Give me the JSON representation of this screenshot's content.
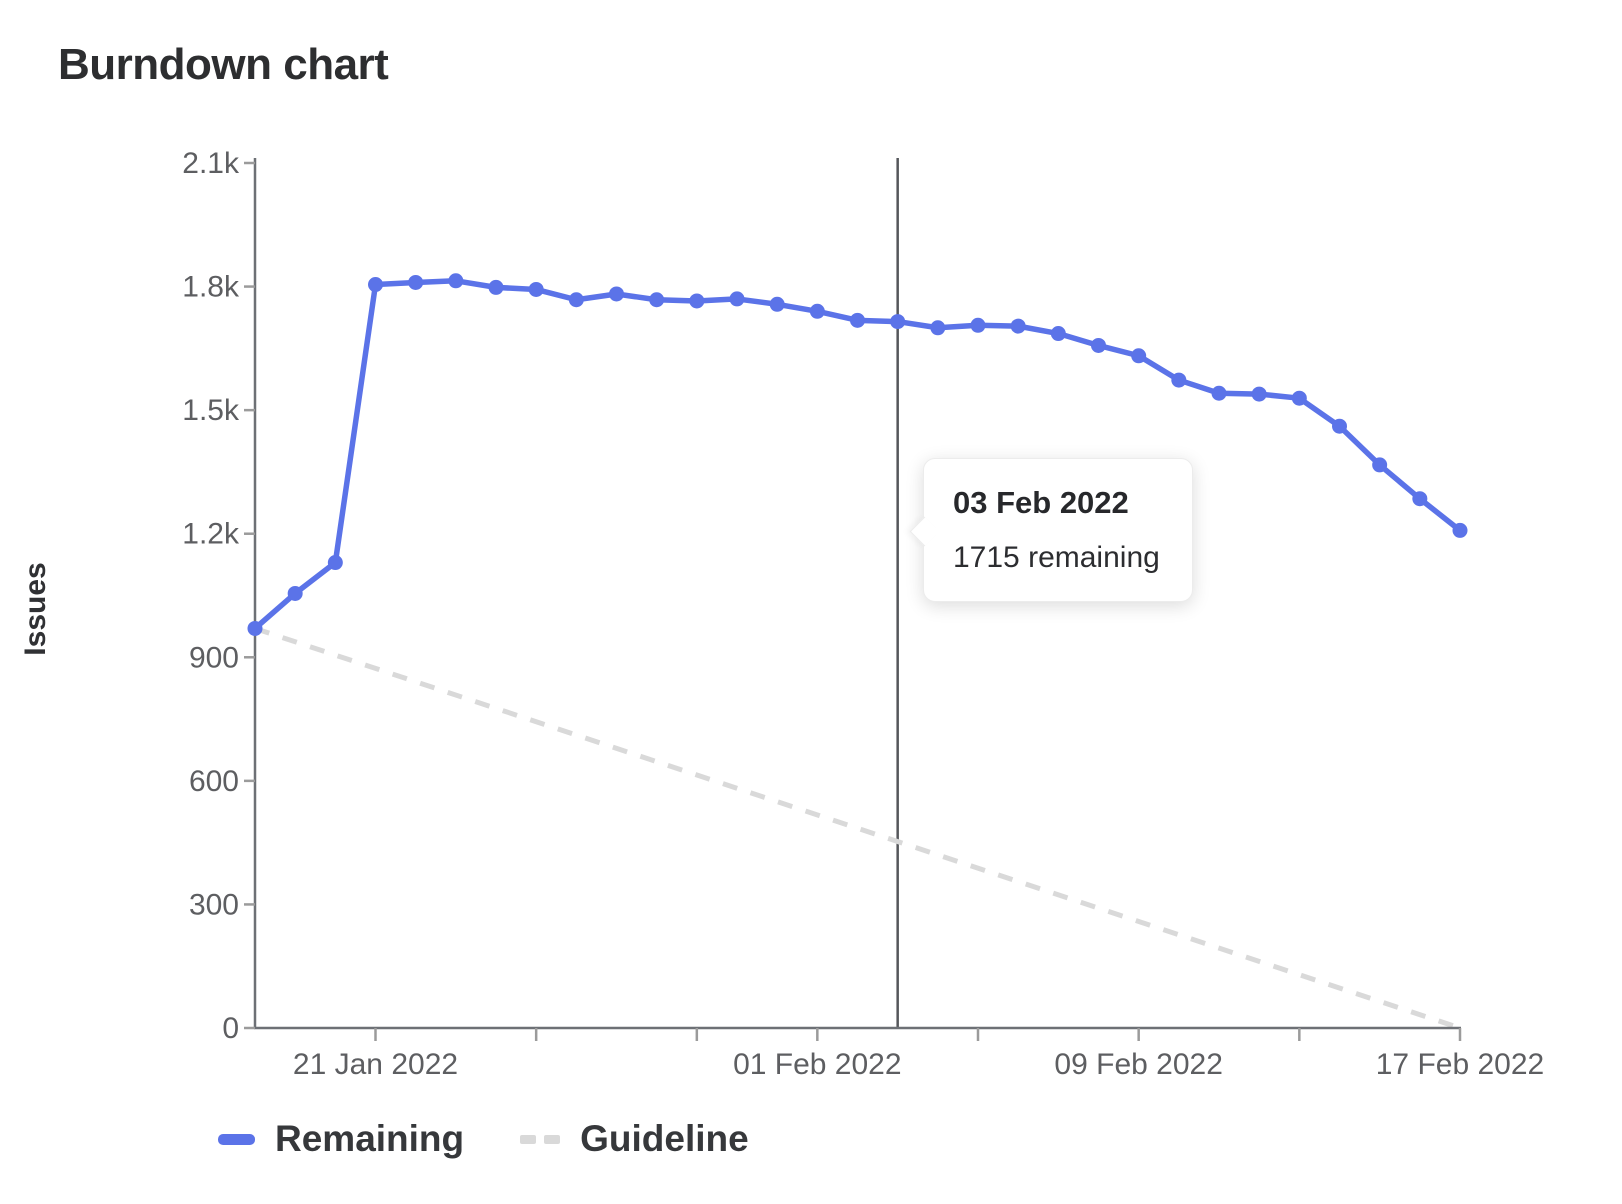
{
  "header": {
    "title": "Burndown chart"
  },
  "tooltip": {
    "date": "03 Feb 2022",
    "text": "1715 remaining"
  },
  "legend": [
    {
      "label": "Remaining",
      "color": "#5b73e8",
      "style": "solid"
    },
    {
      "label": "Guideline",
      "color": "#d9d9d9",
      "style": "dashed"
    }
  ],
  "chart_data": {
    "type": "line",
    "title": "Burndown chart",
    "xlabel": "",
    "ylabel": "Issues",
    "ylim": [
      0,
      2100
    ],
    "x_range_days": 30,
    "grid": false,
    "legend_position": "bottom-left",
    "y_ticks": [
      {
        "value": 2100,
        "label": "2.1k"
      },
      {
        "value": 1800,
        "label": "1.8k"
      },
      {
        "value": 1500,
        "label": "1.5k"
      },
      {
        "value": 1200,
        "label": "1.2k"
      },
      {
        "value": 900,
        "label": "900"
      },
      {
        "value": 600,
        "label": "600"
      },
      {
        "value": 300,
        "label": "300"
      },
      {
        "value": 0,
        "label": "0"
      }
    ],
    "x_ticks": [
      {
        "day": 3,
        "label": "21 Jan 2022"
      },
      {
        "day": 7,
        "label": ""
      },
      {
        "day": 11,
        "label": ""
      },
      {
        "day": 14,
        "label": "01 Feb 2022"
      },
      {
        "day": 18,
        "label": ""
      },
      {
        "day": 22,
        "label": "09 Feb 2022"
      },
      {
        "day": 26,
        "label": ""
      },
      {
        "day": 30,
        "label": "17 Feb 2022"
      }
    ],
    "marker": {
      "label": "03 Feb 2022",
      "day": 16,
      "color": "#55575b"
    },
    "series": [
      {
        "name": "Remaining",
        "style": "solid",
        "color": "#5b73e8",
        "points": [
          {
            "date": "18 Jan 2022",
            "value": 970
          },
          {
            "date": "19 Jan 2022",
            "value": 1055
          },
          {
            "date": "20 Jan 2022",
            "value": 1130
          },
          {
            "date": "21 Jan 2022",
            "value": 1805
          },
          {
            "date": "22 Jan 2022",
            "value": 1810
          },
          {
            "date": "23 Jan 2022",
            "value": 1814
          },
          {
            "date": "24 Jan 2022",
            "value": 1798
          },
          {
            "date": "25 Jan 2022",
            "value": 1793
          },
          {
            "date": "26 Jan 2022",
            "value": 1768
          },
          {
            "date": "27 Jan 2022",
            "value": 1782
          },
          {
            "date": "28 Jan 2022",
            "value": 1768
          },
          {
            "date": "29 Jan 2022",
            "value": 1765
          },
          {
            "date": "30 Jan 2022",
            "value": 1770
          },
          {
            "date": "31 Jan 2022",
            "value": 1757
          },
          {
            "date": "01 Feb 2022",
            "value": 1740
          },
          {
            "date": "02 Feb 2022",
            "value": 1718
          },
          {
            "date": "03 Feb 2022",
            "value": 1715
          },
          {
            "date": "04 Feb 2022",
            "value": 1700
          },
          {
            "date": "05 Feb 2022",
            "value": 1706
          },
          {
            "date": "06 Feb 2022",
            "value": 1704
          },
          {
            "date": "07 Feb 2022",
            "value": 1686
          },
          {
            "date": "08 Feb 2022",
            "value": 1657
          },
          {
            "date": "09 Feb 2022",
            "value": 1632
          },
          {
            "date": "10 Feb 2022",
            "value": 1573
          },
          {
            "date": "11 Feb 2022",
            "value": 1541
          },
          {
            "date": "12 Feb 2022",
            "value": 1539
          },
          {
            "date": "13 Feb 2022",
            "value": 1529
          },
          {
            "date": "14 Feb 2022",
            "value": 1461
          },
          {
            "date": "15 Feb 2022",
            "value": 1367
          },
          {
            "date": "16 Feb 2022",
            "value": 1285
          },
          {
            "date": "17 Feb 2022",
            "value": 1208
          }
        ]
      },
      {
        "name": "Guideline",
        "style": "dashed",
        "color": "#d9d9d9",
        "points": [
          {
            "date": "18 Jan 2022",
            "value": 970
          },
          {
            "date": "17 Feb 2022",
            "value": 0
          }
        ]
      }
    ],
    "axis_color": "#6d7075",
    "tick_color": "#9b9b9b",
    "tick_label_color": "#5d5e61"
  }
}
